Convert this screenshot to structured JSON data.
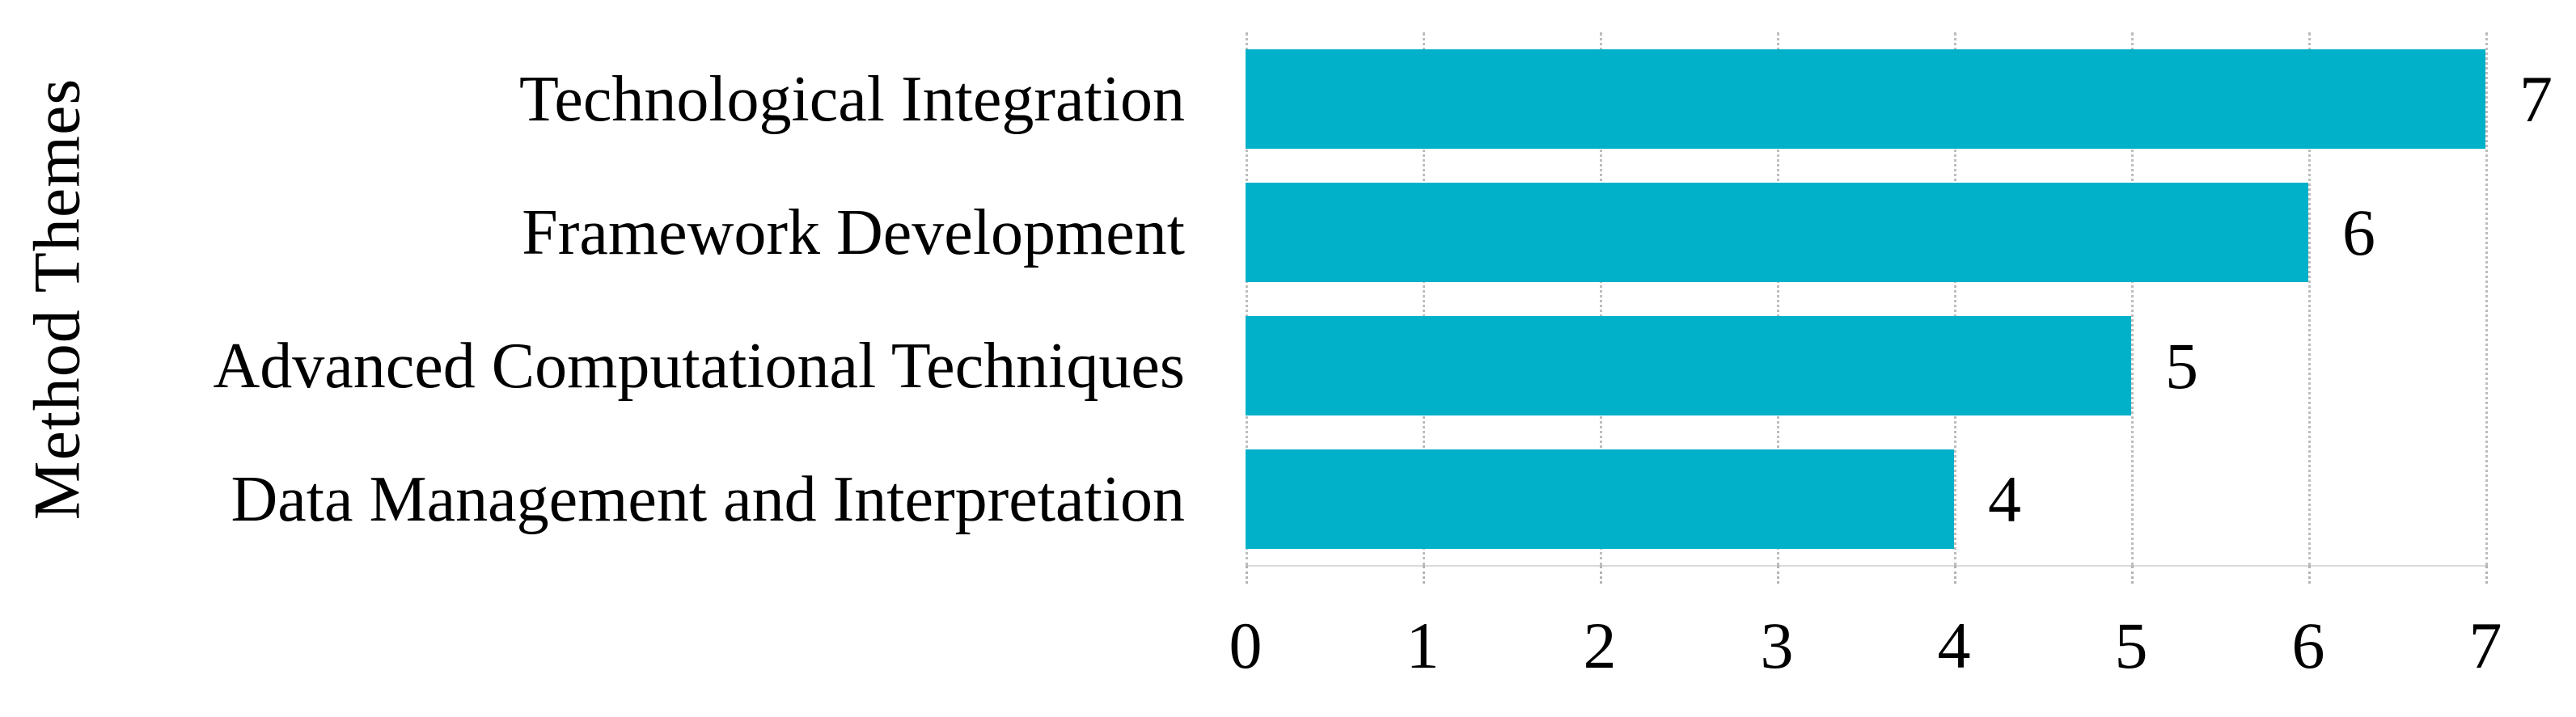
{
  "figure": {
    "background_color": "#FFFFFF",
    "text_color": "#000000"
  },
  "chart_data": {
    "type": "bar",
    "orientation": "horizontal",
    "title": "",
    "xlabel": "",
    "ylabel": "Method Themes",
    "categories": [
      "Technological Integration",
      "Framework Development",
      "Advanced Computational Techniques",
      "Data Management and Interpretation"
    ],
    "values": [
      7,
      6,
      5,
      4
    ],
    "data_labels": [
      "7",
      "6",
      "5",
      "4"
    ],
    "xlim": [
      0,
      7
    ],
    "xticks": [
      "0",
      "1",
      "2",
      "3",
      "4",
      "5",
      "6",
      "7"
    ],
    "grid": true,
    "gridline_style": "dotted-vertical",
    "legend_position": "none",
    "bar_color": "#00B1C9",
    "gridline_color": "#BDBDBD",
    "axis_line_color": "#D9D9D9"
  }
}
